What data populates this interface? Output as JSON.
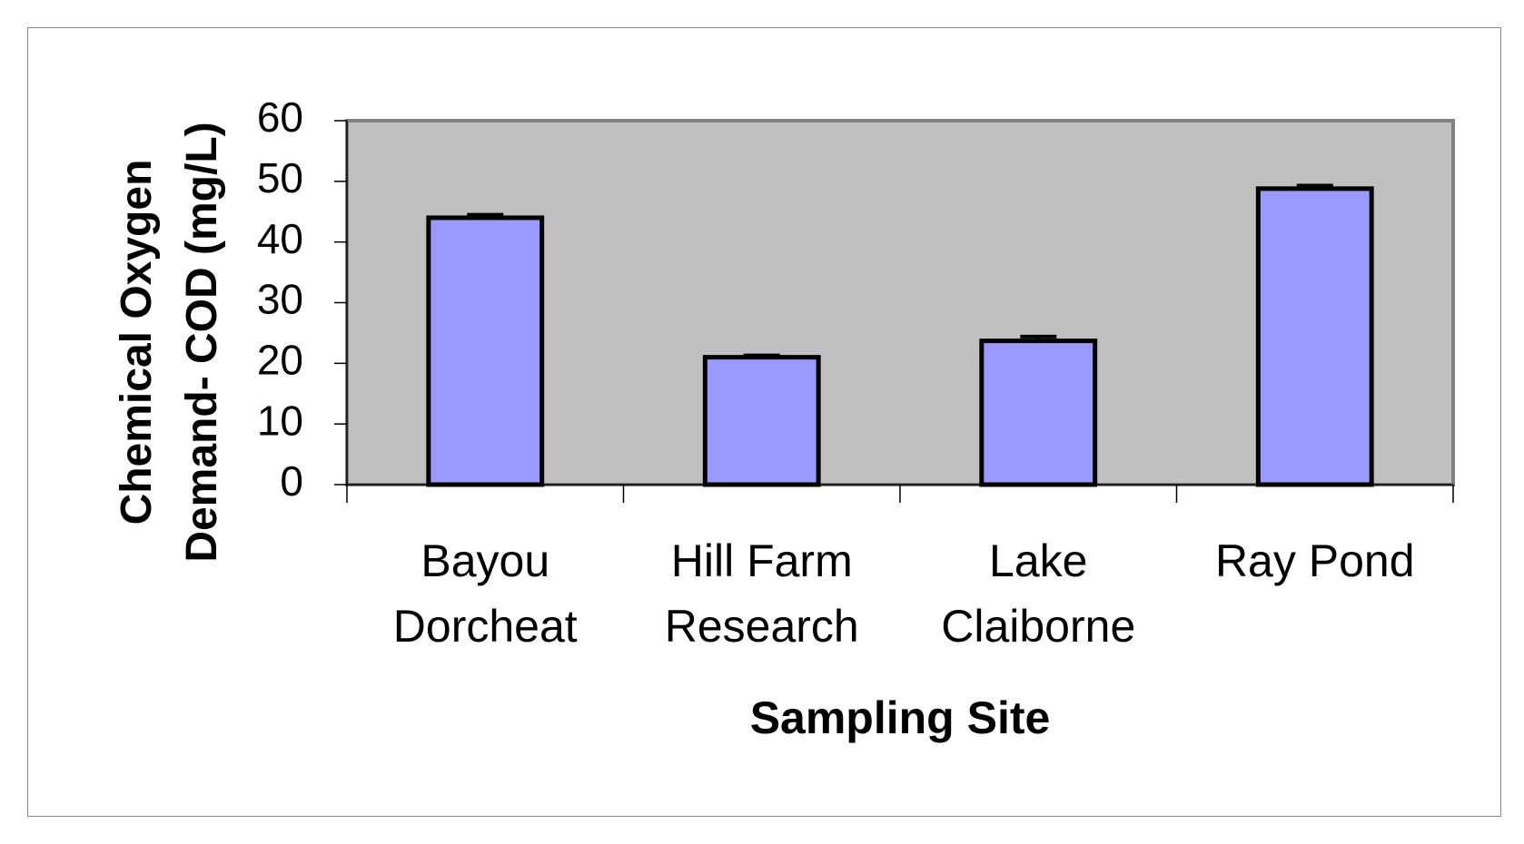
{
  "chart_data": {
    "type": "bar",
    "x_label": "Sampling Site",
    "y_label": "Chemical Oxygen Demand- COD (mg/L)",
    "categories": [
      "Bayou Dorcheat",
      "Hill Farm Research",
      "Lake Claiborne",
      "Ray Pond"
    ],
    "values": [
      44,
      21,
      23.7,
      48.8
    ],
    "errors": [
      0.5,
      0.3,
      0.7,
      0.5
    ],
    "color": "#9999ff",
    "ylim": [
      0,
      60
    ],
    "yticks": [
      0,
      10,
      20,
      30,
      40,
      50,
      60
    ],
    "grid": false
  }
}
